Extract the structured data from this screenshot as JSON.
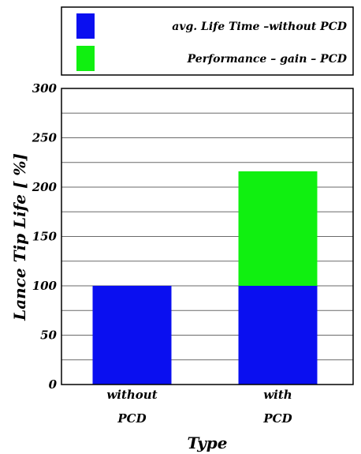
{
  "chart_data": {
    "type": "bar",
    "stacked": true,
    "title": "",
    "xlabel": "Type",
    "ylabel": "Lance Tip Life [ %]",
    "ylim": [
      0,
      300
    ],
    "yticks": [
      0,
      50,
      100,
      150,
      200,
      250,
      300
    ],
    "minor_grid_step": 25,
    "grid": true,
    "legend_position": "top",
    "categories": [
      [
        "without",
        "PCD"
      ],
      [
        "with",
        "PCD"
      ]
    ],
    "series": [
      {
        "name": "avg. Life Time –without PCD",
        "color": "#0a0ff0",
        "values": [
          100,
          100
        ]
      },
      {
        "name": "Performance – gain – PCD",
        "color": "#10f010",
        "values": [
          0,
          116
        ]
      }
    ]
  }
}
